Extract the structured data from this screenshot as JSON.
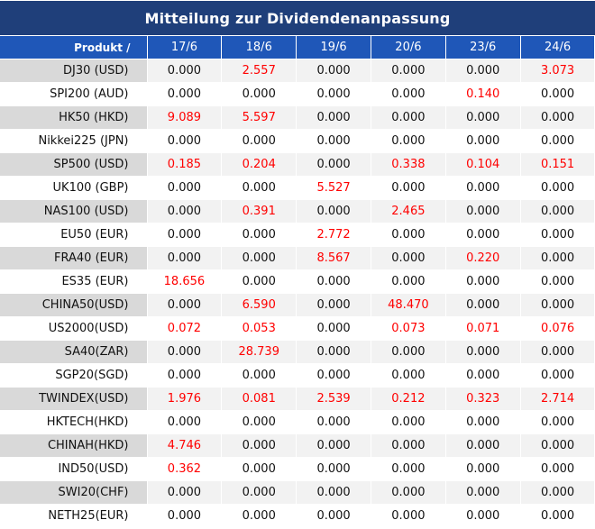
{
  "title": "Mitteilung zur Dividendenanpassung",
  "header": {
    "product_label": "Produkt /",
    "dates": [
      "17/6",
      "18/6",
      "19/6",
      "20/6",
      "23/6",
      "24/6"
    ]
  },
  "colors": {
    "title_bg": "#1f3f7a",
    "header_bg": "#1f57b8",
    "highlight": "#ff0000",
    "alt_row_label": "#d9d9d9",
    "alt_row": "#f2f2f2"
  },
  "rows": [
    {
      "product": "DJ30 (USD)",
      "values": [
        "0.000",
        "2.557",
        "0.000",
        "0.000",
        "0.000",
        "3.073"
      ]
    },
    {
      "product": "SPI200 (AUD)",
      "values": [
        "0.000",
        "0.000",
        "0.000",
        "0.000",
        "0.140",
        "0.000"
      ]
    },
    {
      "product": "HK50 (HKD)",
      "values": [
        "9.089",
        "5.597",
        "0.000",
        "0.000",
        "0.000",
        "0.000"
      ]
    },
    {
      "product": "Nikkei225 (JPN)",
      "values": [
        "0.000",
        "0.000",
        "0.000",
        "0.000",
        "0.000",
        "0.000"
      ]
    },
    {
      "product": "SP500 (USD)",
      "values": [
        "0.185",
        "0.204",
        "0.000",
        "0.338",
        "0.104",
        "0.151"
      ]
    },
    {
      "product": "UK100 (GBP)",
      "values": [
        "0.000",
        "0.000",
        "5.527",
        "0.000",
        "0.000",
        "0.000"
      ]
    },
    {
      "product": "NAS100 (USD)",
      "values": [
        "0.000",
        "0.391",
        "0.000",
        "2.465",
        "0.000",
        "0.000"
      ]
    },
    {
      "product": "EU50 (EUR)",
      "values": [
        "0.000",
        "0.000",
        "2.772",
        "0.000",
        "0.000",
        "0.000"
      ]
    },
    {
      "product": "FRA40 (EUR)",
      "values": [
        "0.000",
        "0.000",
        "8.567",
        "0.000",
        "0.220",
        "0.000"
      ]
    },
    {
      "product": "ES35 (EUR)",
      "values": [
        "18.656",
        "0.000",
        "0.000",
        "0.000",
        "0.000",
        "0.000"
      ]
    },
    {
      "product": "CHINA50(USD)",
      "values": [
        "0.000",
        "6.590",
        "0.000",
        "48.470",
        "0.000",
        "0.000"
      ]
    },
    {
      "product": "US2000(USD)",
      "values": [
        "0.072",
        "0.053",
        "0.000",
        "0.073",
        "0.071",
        "0.076"
      ]
    },
    {
      "product": "SA40(ZAR)",
      "values": [
        "0.000",
        "28.739",
        "0.000",
        "0.000",
        "0.000",
        "0.000"
      ]
    },
    {
      "product": "SGP20(SGD)",
      "values": [
        "0.000",
        "0.000",
        "0.000",
        "0.000",
        "0.000",
        "0.000"
      ]
    },
    {
      "product": "TWINDEX(USD)",
      "values": [
        "1.976",
        "0.081",
        "2.539",
        "0.212",
        "0.323",
        "2.714"
      ]
    },
    {
      "product": "HKTECH(HKD)",
      "values": [
        "0.000",
        "0.000",
        "0.000",
        "0.000",
        "0.000",
        "0.000"
      ]
    },
    {
      "product": "CHINAH(HKD)",
      "values": [
        "4.746",
        "0.000",
        "0.000",
        "0.000",
        "0.000",
        "0.000"
      ]
    },
    {
      "product": "IND50(USD)",
      "values": [
        "0.362",
        "0.000",
        "0.000",
        "0.000",
        "0.000",
        "0.000"
      ]
    },
    {
      "product": "SWI20(CHF)",
      "values": [
        "0.000",
        "0.000",
        "0.000",
        "0.000",
        "0.000",
        "0.000"
      ]
    },
    {
      "product": "NETH25(EUR)",
      "values": [
        "0.000",
        "0.000",
        "0.000",
        "0.000",
        "0.000",
        "0.000"
      ]
    }
  ]
}
